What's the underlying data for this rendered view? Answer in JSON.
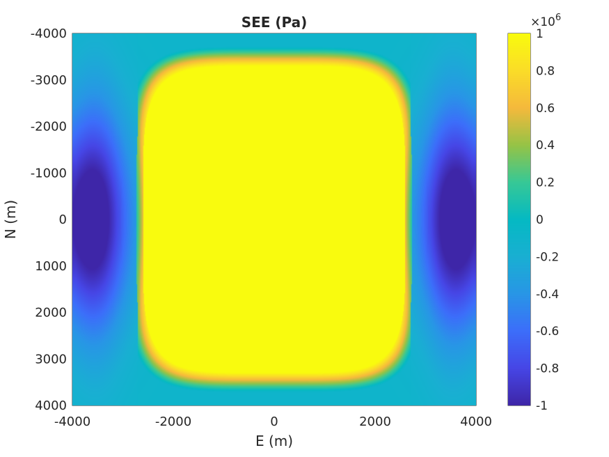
{
  "chart_data": {
    "type": "heatmap",
    "title": "SEE (Pa)",
    "xlabel": "E (m)",
    "ylabel": "N (m)",
    "xlim": [
      -4000,
      4000
    ],
    "ylim": [
      -4000,
      4000
    ],
    "y_reversed": true,
    "x_ticks": [
      -4000,
      -2000,
      0,
      2000,
      4000
    ],
    "x_tick_labels": [
      "-4000",
      "-2000",
      "0",
      "2000",
      "4000"
    ],
    "y_ticks": [
      -4000,
      -3000,
      -2000,
      -1000,
      0,
      1000,
      2000,
      3000,
      4000
    ],
    "y_tick_labels": [
      "-4000",
      "-3000",
      "-2000",
      "-1000",
      "0",
      "1000",
      "2000",
      "3000",
      "4000"
    ],
    "colormap": "parula",
    "colorbar": {
      "clim": [
        -1,
        1
      ],
      "ticks": [
        -1,
        -0.8,
        -0.6,
        -0.4,
        -0.2,
        0,
        0.2,
        0.4,
        0.6,
        0.8,
        1
      ],
      "tick_labels": [
        "-1",
        "-0.8",
        "-0.6",
        "-0.4",
        "-0.2",
        "0",
        "0.2",
        "0.4",
        "0.6",
        "0.8",
        "1"
      ],
      "exponent_label": "×10",
      "exponent_power": "6"
    },
    "field_description": {
      "plateau_value": 1,
      "plateau_x_half_width": 2600,
      "plateau_y_half_width": 3300,
      "min_value": -1,
      "min_locations": [
        [
          -3800,
          0
        ],
        [
          3800,
          0
        ]
      ],
      "grid": true
    }
  }
}
